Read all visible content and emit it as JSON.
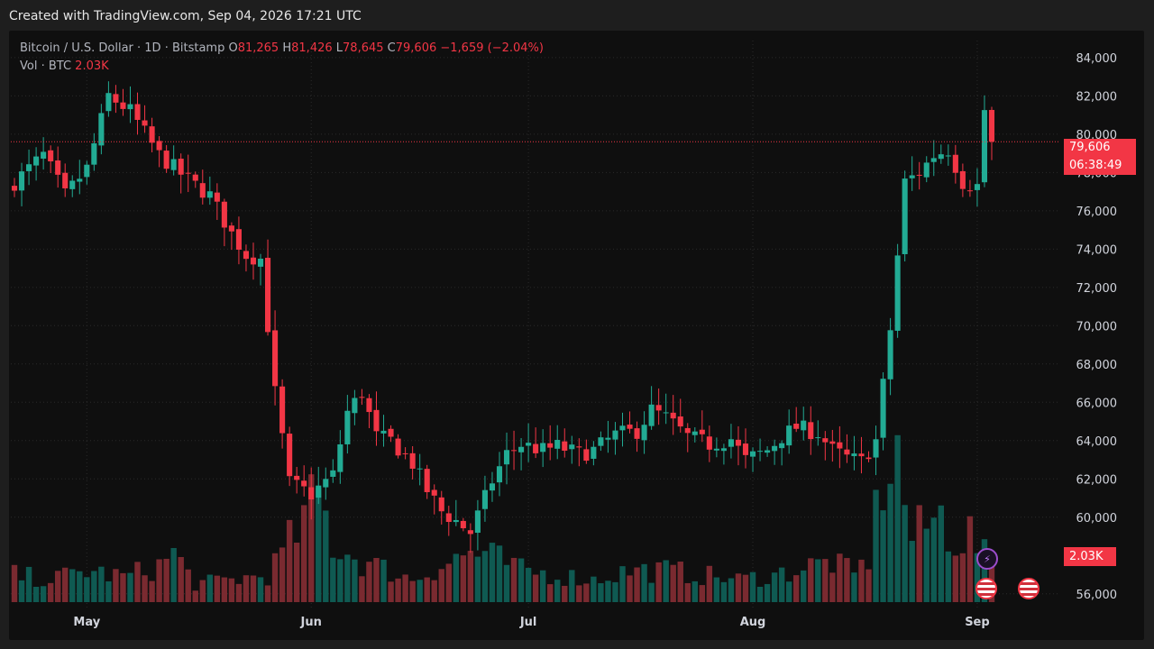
{
  "header": {
    "created_text": "Created with TradingView.com, Sep 04, 2026 17:21 UTC"
  },
  "legend": {
    "symbol": "Bitcoin / U.S. Dollar · 1D · Bitstamp",
    "o_label": "O",
    "o_value": "81,265",
    "h_label": "H",
    "h_value": "81,426",
    "l_label": "L",
    "l_value": "78,645",
    "c_label": "C",
    "c_value": "79,606",
    "change": "−1,659 (−2.04%)",
    "vol_label": "Vol · BTC",
    "vol_value": "2.03K"
  },
  "tags": {
    "last_price": "79,606",
    "countdown": "06:38:49",
    "volume": "2.03K"
  },
  "colors": {
    "up": "#22ab94",
    "down": "#f23645",
    "up_vol": "#0f5a52",
    "down_vol": "#7a2a30",
    "grid": "#2a2a2a"
  },
  "chart_data": {
    "type": "candlestick",
    "ylim": [
      55000,
      85500
    ],
    "y_ticks": [
      "84,000",
      "82,000",
      "80,000",
      "78,000",
      "76,000",
      "74,000",
      "72,000",
      "70,000",
      "68,000",
      "66,000",
      "64,000",
      "62,000",
      "60,000",
      "56,000"
    ],
    "x_labels": [
      "May",
      "Jun",
      "Jul",
      "Aug",
      "Sep"
    ],
    "x_label_index": [
      10,
      41,
      71,
      102,
      133
    ],
    "last_price": 79606,
    "close_points": [
      [
        0,
        77500
      ],
      [
        4,
        78900
      ],
      [
        7,
        76800
      ],
      [
        10,
        78200
      ],
      [
        13,
        82000
      ],
      [
        16,
        81200
      ],
      [
        20,
        78900
      ],
      [
        24,
        77600
      ],
      [
        27,
        76800
      ],
      [
        30,
        74800
      ],
      [
        32,
        73700
      ],
      [
        34,
        73500
      ],
      [
        36,
        66500
      ],
      [
        38,
        61800
      ],
      [
        41,
        61200
      ],
      [
        44,
        62200
      ],
      [
        46,
        65500
      ],
      [
        48,
        66500
      ],
      [
        50,
        64200
      ],
      [
        52,
        64000
      ],
      [
        55,
        62800
      ],
      [
        57,
        61400
      ],
      [
        59,
        60300
      ],
      [
        61,
        59800
      ],
      [
        63,
        59200
      ],
      [
        66,
        61900
      ],
      [
        68,
        63300
      ],
      [
        70,
        63800
      ],
      [
        73,
        63500
      ],
      [
        75,
        63700
      ],
      [
        78,
        63300
      ],
      [
        80,
        63500
      ],
      [
        83,
        64300
      ],
      [
        86,
        64500
      ],
      [
        88,
        65600
      ],
      [
        90,
        65200
      ],
      [
        93,
        64200
      ],
      [
        96,
        63800
      ],
      [
        99,
        64100
      ],
      [
        101,
        63000
      ],
      [
        104,
        63500
      ],
      [
        106,
        64200
      ],
      [
        108,
        64700
      ],
      [
        111,
        64400
      ],
      [
        113,
        63500
      ],
      [
        115,
        63100
      ],
      [
        117,
        62900
      ],
      [
        119,
        64000
      ],
      [
        121,
        69800
      ],
      [
        123,
        77500
      ],
      [
        125,
        78000
      ],
      [
        127,
        78900
      ],
      [
        129,
        79200
      ],
      [
        131,
        77500
      ],
      [
        133,
        77300
      ],
      [
        134,
        81265
      ],
      [
        135,
        79606
      ]
    ],
    "volume_points": [
      [
        0,
        0.3
      ],
      [
        5,
        0.25
      ],
      [
        10,
        0.35
      ],
      [
        15,
        0.28
      ],
      [
        20,
        0.4
      ],
      [
        22,
        0.55
      ],
      [
        25,
        0.2
      ],
      [
        30,
        0.25
      ],
      [
        35,
        0.3
      ],
      [
        40,
        0.9
      ],
      [
        42,
        1.2
      ],
      [
        44,
        0.65
      ],
      [
        46,
        0.55
      ],
      [
        48,
        0.45
      ],
      [
        50,
        0.4
      ],
      [
        55,
        0.25
      ],
      [
        60,
        0.45
      ],
      [
        63,
        0.55
      ],
      [
        66,
        0.5
      ],
      [
        70,
        0.35
      ],
      [
        75,
        0.3
      ],
      [
        80,
        0.25
      ],
      [
        85,
        0.35
      ],
      [
        90,
        0.35
      ],
      [
        95,
        0.3
      ],
      [
        100,
        0.25
      ],
      [
        105,
        0.3
      ],
      [
        110,
        0.4
      ],
      [
        113,
        0.45
      ],
      [
        116,
        0.3
      ],
      [
        118,
        0.5
      ],
      [
        120,
        1.4
      ],
      [
        122,
        1.6
      ],
      [
        124,
        0.7
      ],
      [
        126,
        0.85
      ],
      [
        128,
        0.95
      ],
      [
        130,
        0.7
      ],
      [
        132,
        0.75
      ],
      [
        134,
        0.5
      ],
      [
        135,
        0.4
      ]
    ],
    "volume_max": 2.0,
    "ohlc_last": {
      "open": 81265,
      "high": 81426,
      "low": 78645,
      "close": 79606
    },
    "volume_last": "2.03K"
  }
}
